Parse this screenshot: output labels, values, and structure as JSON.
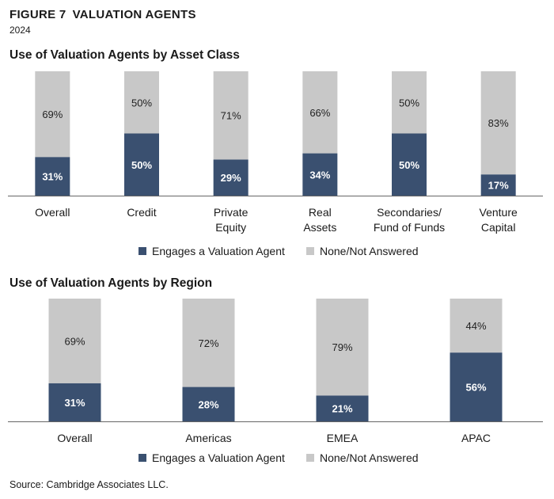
{
  "figure": {
    "number": "FIGURE 7",
    "title": "VALUATION AGENTS",
    "year": "2024",
    "source": "Source: Cambridge Associates LLC."
  },
  "legend": {
    "engages": "Engages a Valuation Agent",
    "none": "None/Not Answered"
  },
  "colors": {
    "engages": "#3a5070",
    "none": "#c8c8c8",
    "axis": "#666666"
  },
  "chart_data": [
    {
      "type": "bar",
      "stacked": true,
      "title": "Use of Valuation Agents by Asset Class",
      "categories": [
        "Overall",
        "Credit",
        "Private\nEquity",
        "Real\nAssets",
        "Secondaries/\nFund of Funds",
        "Venture\nCapital"
      ],
      "series": [
        {
          "name": "Engages a Valuation Agent",
          "values": [
            31,
            50,
            29,
            34,
            50,
            17
          ],
          "labels": [
            "31%",
            "50%",
            "29%",
            "34%",
            "50%",
            "17%"
          ]
        },
        {
          "name": "None/Not Answered",
          "values": [
            69,
            50,
            71,
            66,
            50,
            83
          ],
          "labels": [
            "69%",
            "50%",
            "71%",
            "66%",
            "50%",
            "83%"
          ]
        }
      ],
      "ylim": [
        0,
        100
      ],
      "legend": "bottom"
    },
    {
      "type": "bar",
      "stacked": true,
      "title": "Use of Valuation Agents by Region",
      "categories": [
        "Overall",
        "Americas",
        "EMEA",
        "APAC"
      ],
      "series": [
        {
          "name": "Engages a Valuation Agent",
          "values": [
            31,
            28,
            21,
            56
          ],
          "labels": [
            "31%",
            "28%",
            "21%",
            "56%"
          ]
        },
        {
          "name": "None/Not Answered",
          "values": [
            69,
            72,
            79,
            44
          ],
          "labels": [
            "69%",
            "72%",
            "79%",
            "44%"
          ]
        }
      ],
      "ylim": [
        0,
        100
      ],
      "legend": "bottom"
    }
  ]
}
